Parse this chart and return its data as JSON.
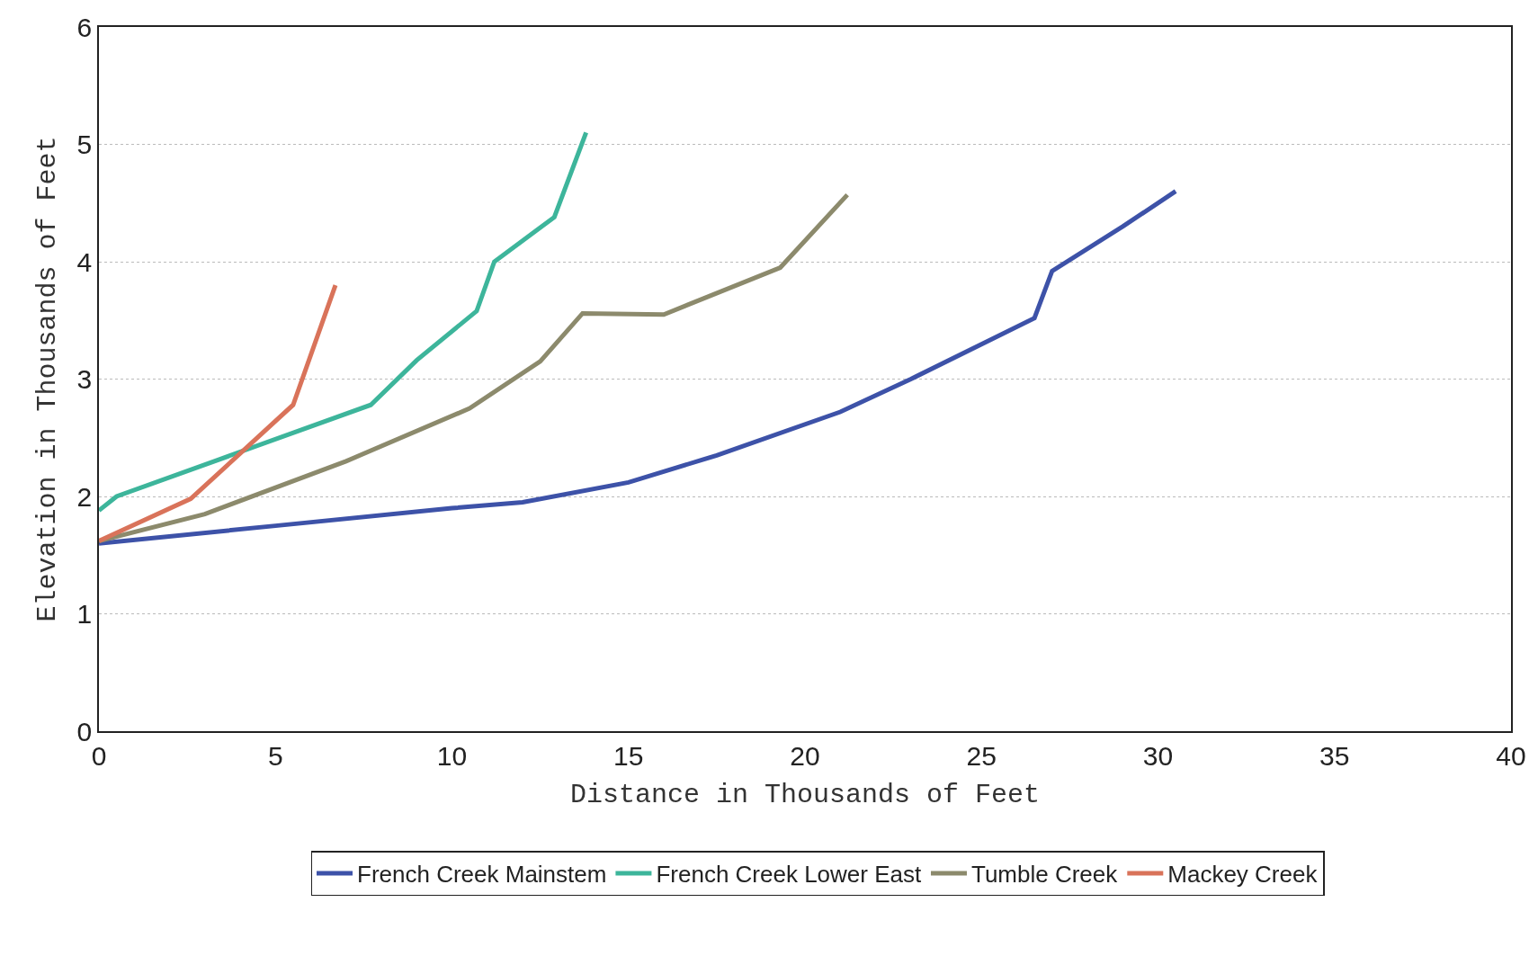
{
  "chart_data": {
    "type": "line",
    "xlabel": "Distance in Thousands of Feet",
    "ylabel": "Elevation in Thousands of Feet",
    "xlim": [
      0,
      40
    ],
    "xticks": [
      0,
      5,
      10,
      15,
      20,
      25,
      30,
      35,
      40
    ],
    "ylim": [
      0,
      6
    ],
    "yticks": [
      0,
      1,
      2,
      3,
      4,
      5,
      6
    ],
    "grid": "y",
    "legend": "bottom",
    "marker": "none",
    "line_style": "solid",
    "series": [
      {
        "name": "French Creek Mainstem",
        "color": "#3d52a8",
        "x": [
          0,
          5,
          10,
          12,
          15,
          17.5,
          21,
          23,
          26.5,
          27,
          29,
          30.5
        ],
        "values": [
          1.6,
          1.75,
          1.9,
          1.95,
          2.12,
          2.35,
          2.72,
          3.0,
          3.52,
          3.92,
          4.3,
          4.6
        ]
      },
      {
        "name": "French Creek Lower East",
        "color": "#3db59b",
        "x": [
          0,
          0.5,
          7.7,
          9,
          10.7,
          11.2,
          12.9,
          13.8
        ],
        "values": [
          1.88,
          2.0,
          2.78,
          3.16,
          3.58,
          4.0,
          4.38,
          5.1
        ]
      },
      {
        "name": "Tumble Creek",
        "color": "#8c8a6c",
        "x": [
          0,
          3,
          7,
          10.5,
          12.5,
          13.7,
          16,
          19.3,
          21.2
        ],
        "values": [
          1.62,
          1.85,
          2.3,
          2.75,
          3.15,
          3.56,
          3.55,
          3.95,
          4.57
        ]
      },
      {
        "name": "Mackey Creek",
        "color": "#d9735a",
        "x": [
          0,
          2.6,
          5.5,
          6.7
        ],
        "values": [
          1.62,
          1.98,
          2.78,
          3.8
        ]
      }
    ]
  }
}
